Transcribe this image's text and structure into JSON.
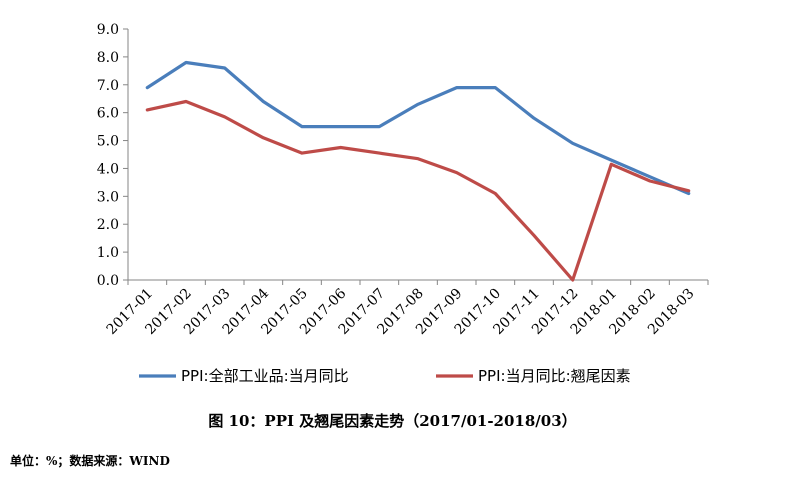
{
  "chart_data": {
    "type": "line",
    "title": "",
    "xlabel": "",
    "ylabel": "",
    "categories": [
      "2017-01",
      "2017-02",
      "2017-03",
      "2017-04",
      "2017-05",
      "2017-06",
      "2017-07",
      "2017-08",
      "2017-09",
      "2017-10",
      "2017-11",
      "2017-12",
      "2018-01",
      "2018-02",
      "2018-03"
    ],
    "ylim": [
      0,
      9
    ],
    "yticks": [
      "0.0",
      "1.0",
      "2.0",
      "3.0",
      "4.0",
      "5.0",
      "6.0",
      "7.0",
      "8.0",
      "9.0"
    ],
    "grid": false,
    "legend_position": "bottom",
    "series": [
      {
        "name": "PPI:全部工业品:当月同比",
        "color": "#4A7EBB",
        "values": [
          6.9,
          7.8,
          7.6,
          6.4,
          5.5,
          5.5,
          5.5,
          6.3,
          6.9,
          6.9,
          5.8,
          4.9,
          4.3,
          3.7,
          3.1
        ]
      },
      {
        "name": "PPI:当月同比:翘尾因素",
        "color": "#BE4B48",
        "values": [
          6.1,
          6.4,
          5.85,
          5.1,
          4.55,
          4.75,
          4.55,
          4.35,
          3.85,
          3.1,
          1.6,
          0.0,
          4.15,
          3.55,
          3.2
        ]
      }
    ]
  },
  "caption": "图 10：PPI 及翘尾因素走势（2017/01-2018/03）",
  "source": "单位：%；数据来源：WIND"
}
